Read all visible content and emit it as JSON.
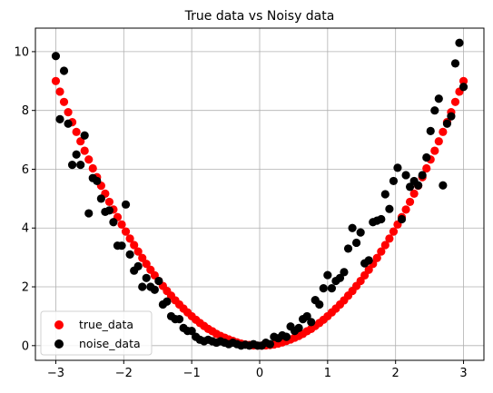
{
  "chart_data": {
    "type": "scatter",
    "title": "True data vs Noisy data",
    "xlabel": "",
    "ylabel": "",
    "xlim": [
      -3.3,
      3.3
    ],
    "ylim": [
      -0.5,
      10.8
    ],
    "xticks": [
      -3,
      -2,
      -1,
      0,
      1,
      2,
      3
    ],
    "yticks": [
      0,
      2,
      4,
      6,
      8,
      10
    ],
    "xtick_labels": [
      "−3",
      "−2",
      "−1",
      "0",
      "1",
      "2",
      "3"
    ],
    "ytick_labels": [
      "0",
      "2",
      "4",
      "6",
      "8",
      "10"
    ],
    "grid": true,
    "legend_position": "lower-left",
    "series": [
      {
        "name": "true_data",
        "color": "#ff0000",
        "x": [
          -3.0,
          -2.939,
          -2.879,
          -2.818,
          -2.758,
          -2.697,
          -2.636,
          -2.576,
          -2.515,
          -2.455,
          -2.394,
          -2.333,
          -2.273,
          -2.212,
          -2.152,
          -2.091,
          -2.03,
          -1.97,
          -1.909,
          -1.848,
          -1.788,
          -1.727,
          -1.667,
          -1.606,
          -1.545,
          -1.485,
          -1.424,
          -1.364,
          -1.303,
          -1.242,
          -1.182,
          -1.121,
          -1.061,
          -1.0,
          -0.939,
          -0.879,
          -0.818,
          -0.758,
          -0.697,
          -0.636,
          -0.576,
          -0.515,
          -0.455,
          -0.394,
          -0.333,
          -0.273,
          -0.212,
          -0.152,
          -0.091,
          -0.03,
          0.03,
          0.091,
          0.152,
          0.212,
          0.273,
          0.333,
          0.394,
          0.455,
          0.515,
          0.576,
          0.636,
          0.697,
          0.758,
          0.818,
          0.879,
          0.939,
          1.0,
          1.061,
          1.121,
          1.182,
          1.242,
          1.303,
          1.364,
          1.424,
          1.485,
          1.545,
          1.606,
          1.667,
          1.727,
          1.788,
          1.848,
          1.909,
          1.97,
          2.03,
          2.091,
          2.152,
          2.212,
          2.273,
          2.333,
          2.394,
          2.455,
          2.515,
          2.576,
          2.636,
          2.697,
          2.758,
          2.818,
          2.879,
          2.939,
          3.0
        ],
        "y": [
          9.0,
          8.64,
          8.29,
          7.94,
          7.6,
          7.27,
          6.95,
          6.63,
          6.33,
          6.03,
          5.73,
          5.44,
          5.17,
          4.89,
          4.63,
          4.37,
          4.12,
          3.88,
          3.64,
          3.42,
          3.2,
          2.98,
          2.78,
          2.58,
          2.39,
          2.2,
          2.03,
          1.86,
          1.7,
          1.54,
          1.4,
          1.26,
          1.13,
          1.0,
          0.88,
          0.77,
          0.67,
          0.57,
          0.49,
          0.4,
          0.33,
          0.27,
          0.21,
          0.16,
          0.11,
          0.07,
          0.04,
          0.02,
          0.01,
          0.0,
          0.0,
          0.01,
          0.02,
          0.04,
          0.07,
          0.11,
          0.16,
          0.21,
          0.27,
          0.33,
          0.4,
          0.49,
          0.57,
          0.67,
          0.77,
          0.88,
          1.0,
          1.13,
          1.26,
          1.4,
          1.54,
          1.7,
          1.86,
          2.03,
          2.2,
          2.39,
          2.58,
          2.78,
          2.98,
          3.2,
          3.42,
          3.64,
          3.88,
          4.12,
          4.37,
          4.63,
          4.89,
          5.17,
          5.44,
          5.73,
          6.03,
          6.33,
          6.63,
          6.95,
          7.27,
          7.6,
          7.94,
          8.29,
          8.64,
          9.0
        ]
      },
      {
        "name": "noise_data",
        "color": "#000000",
        "x": [
          -3.0,
          -2.939,
          -2.879,
          -2.818,
          -2.758,
          -2.697,
          -2.636,
          -2.576,
          -2.515,
          -2.455,
          -2.394,
          -2.333,
          -2.273,
          -2.212,
          -2.152,
          -2.091,
          -2.03,
          -1.97,
          -1.909,
          -1.848,
          -1.788,
          -1.727,
          -1.667,
          -1.606,
          -1.545,
          -1.485,
          -1.424,
          -1.364,
          -1.303,
          -1.242,
          -1.182,
          -1.121,
          -1.061,
          -1.0,
          -0.939,
          -0.879,
          -0.818,
          -0.758,
          -0.697,
          -0.636,
          -0.576,
          -0.515,
          -0.455,
          -0.394,
          -0.333,
          -0.273,
          -0.212,
          -0.152,
          -0.091,
          -0.03,
          0.03,
          0.091,
          0.152,
          0.212,
          0.273,
          0.333,
          0.394,
          0.455,
          0.515,
          0.576,
          0.636,
          0.697,
          0.758,
          0.818,
          0.879,
          0.939,
          1.0,
          1.061,
          1.121,
          1.182,
          1.242,
          1.303,
          1.364,
          1.424,
          1.485,
          1.545,
          1.606,
          1.667,
          1.727,
          1.788,
          1.848,
          1.909,
          1.97,
          2.03,
          2.091,
          2.152,
          2.212,
          2.273,
          2.333,
          2.394,
          2.455,
          2.515,
          2.576,
          2.636,
          2.697,
          2.758,
          2.818,
          2.879,
          2.939,
          3.0
        ],
        "y": [
          9.85,
          7.7,
          9.35,
          7.55,
          6.15,
          6.5,
          6.15,
          7.15,
          4.5,
          5.7,
          5.6,
          5.0,
          4.55,
          4.6,
          4.2,
          3.4,
          3.4,
          4.8,
          3.1,
          2.55,
          2.7,
          2.0,
          2.3,
          2.0,
          1.9,
          2.2,
          1.4,
          1.5,
          1.0,
          0.9,
          0.9,
          0.6,
          0.5,
          0.5,
          0.3,
          0.2,
          0.15,
          0.2,
          0.15,
          0.1,
          0.15,
          0.1,
          0.05,
          0.1,
          0.05,
          0.0,
          0.03,
          0.0,
          0.05,
          0.0,
          0.0,
          0.1,
          0.05,
          0.3,
          0.25,
          0.35,
          0.3,
          0.65,
          0.5,
          0.6,
          0.9,
          1.0,
          0.8,
          1.55,
          1.4,
          1.95,
          2.4,
          1.95,
          2.2,
          2.3,
          2.5,
          3.3,
          4.0,
          3.5,
          3.85,
          2.8,
          2.9,
          4.2,
          4.25,
          4.3,
          5.15,
          4.65,
          5.6,
          6.05,
          4.3,
          5.8,
          5.4,
          5.6,
          5.45,
          5.8,
          6.4,
          7.3,
          8.0,
          8.4,
          5.45,
          7.55,
          7.8,
          9.6,
          10.3,
          8.8
        ]
      }
    ]
  }
}
